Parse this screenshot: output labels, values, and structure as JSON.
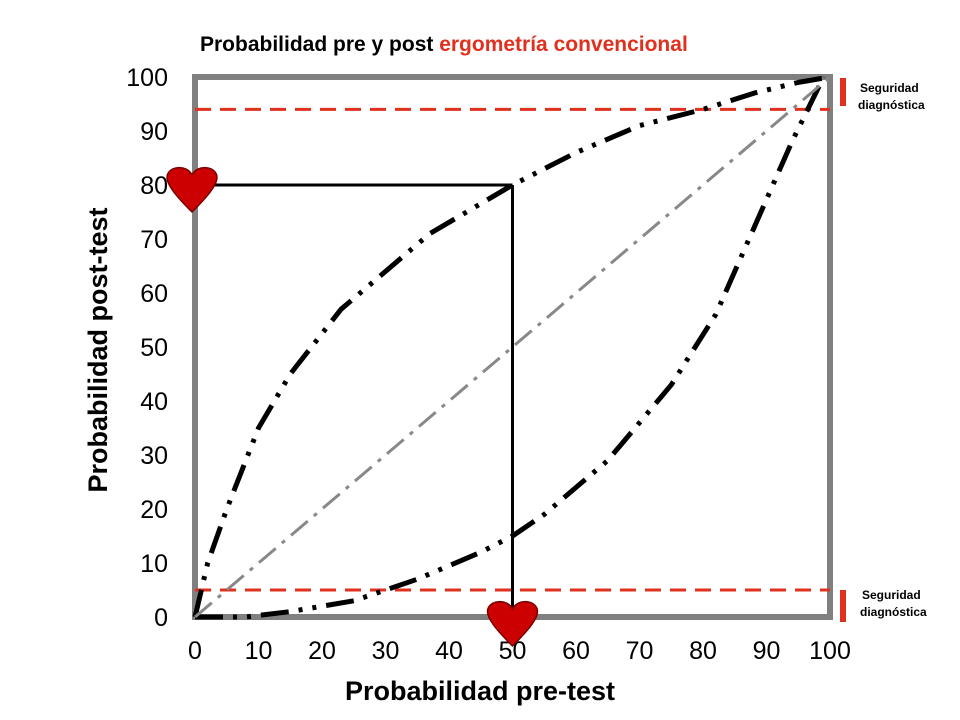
{
  "chart_data": {
    "type": "line",
    "title": {
      "prefix": "Probabilidad pre y post ",
      "highlight": "ergometría convencional",
      "prefix_color": "#000000",
      "highlight_color": "#e0301e"
    },
    "xlabel": "Probabilidad pre-test",
    "ylabel": "Probabilidad post-test",
    "xlim": [
      0,
      100
    ],
    "ylim": [
      0,
      100
    ],
    "xticks": [
      0,
      10,
      20,
      30,
      40,
      50,
      60,
      70,
      80,
      90,
      100
    ],
    "yticks": [
      0,
      10,
      20,
      30,
      40,
      50,
      60,
      70,
      80,
      90,
      100
    ],
    "grid": false,
    "series": [
      {
        "style": "dash-dot-dot",
        "color": "#000000",
        "points": [
          [
            0,
            0
          ],
          [
            2,
            10
          ],
          [
            5,
            20
          ],
          [
            10,
            35
          ],
          [
            15,
            45
          ],
          [
            23,
            57
          ],
          [
            37,
            71
          ],
          [
            50,
            80
          ],
          [
            60,
            86
          ],
          [
            70,
            91
          ],
          [
            80,
            94
          ],
          [
            88,
            97
          ],
          [
            95,
            99
          ],
          [
            100,
            100
          ]
        ]
      },
      {
        "style": "dash-dot-dot",
        "color": "#000000",
        "points": [
          [
            0,
            0
          ],
          [
            8,
            0
          ],
          [
            15,
            1
          ],
          [
            25,
            3
          ],
          [
            35,
            7
          ],
          [
            45,
            12
          ],
          [
            50,
            15
          ],
          [
            55,
            19
          ],
          [
            65,
            29
          ],
          [
            75,
            43
          ],
          [
            82,
            56
          ],
          [
            88,
            72
          ],
          [
            94,
            88
          ],
          [
            99,
            100
          ]
        ]
      },
      {
        "style": "dash-dot",
        "color": "#888888",
        "points": [
          [
            0,
            0
          ],
          [
            100,
            100
          ]
        ]
      }
    ],
    "reference_lines": {
      "upper_y": 94,
      "lower_y": 5,
      "color": "#e0301e",
      "style": "dashed"
    },
    "example": {
      "pre_test": 50,
      "post_test": 80,
      "marker": "heart",
      "marker_color": "#cc0000"
    },
    "annotations": [
      {
        "text": [
          "Seguridad",
          "diagnóstica"
        ],
        "position": "top-right"
      },
      {
        "text": [
          "Seguridad",
          "diagnóstica"
        ],
        "position": "bottom-right"
      }
    ],
    "frame_color": "#808080"
  }
}
